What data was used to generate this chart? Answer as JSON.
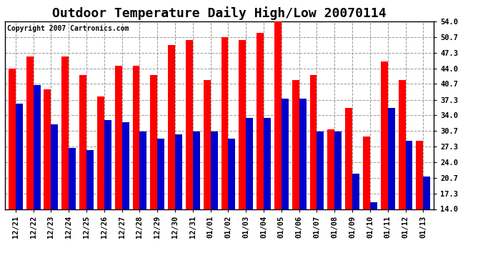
{
  "title": "Outdoor Temperature Daily High/Low 20070114",
  "copyright": "Copyright 2007 Cartronics.com",
  "dates": [
    "12/21",
    "12/22",
    "12/23",
    "12/24",
    "12/25",
    "12/26",
    "12/27",
    "12/28",
    "12/29",
    "12/30",
    "12/31",
    "01/01",
    "01/02",
    "01/03",
    "01/04",
    "01/05",
    "01/06",
    "01/07",
    "01/08",
    "01/09",
    "01/10",
    "01/11",
    "01/12",
    "01/13"
  ],
  "highs": [
    44.0,
    46.5,
    39.5,
    46.5,
    42.5,
    38.0,
    44.5,
    44.5,
    42.5,
    49.0,
    50.0,
    41.5,
    50.7,
    50.0,
    51.5,
    54.0,
    41.5,
    42.5,
    31.0,
    35.5,
    29.5,
    45.5,
    41.5,
    28.5
  ],
  "lows": [
    36.5,
    40.5,
    32.0,
    27.0,
    26.5,
    33.0,
    32.5,
    30.5,
    29.0,
    30.0,
    30.5,
    30.5,
    29.0,
    33.5,
    33.5,
    37.5,
    37.5,
    30.5,
    30.5,
    21.5,
    15.5,
    35.5,
    28.5,
    21.0
  ],
  "high_color": "#ff0000",
  "low_color": "#0000cc",
  "background_color": "#ffffff",
  "plot_background": "#ffffff",
  "grid_color": "#999999",
  "ylim_min": 14.0,
  "ylim_max": 54.0,
  "yticks": [
    14.0,
    17.3,
    20.7,
    24.0,
    27.3,
    30.7,
    34.0,
    37.3,
    40.7,
    44.0,
    47.3,
    50.7,
    54.0
  ],
  "title_fontsize": 13,
  "copyright_fontsize": 7,
  "tick_fontsize": 7.5,
  "bar_width": 0.4
}
